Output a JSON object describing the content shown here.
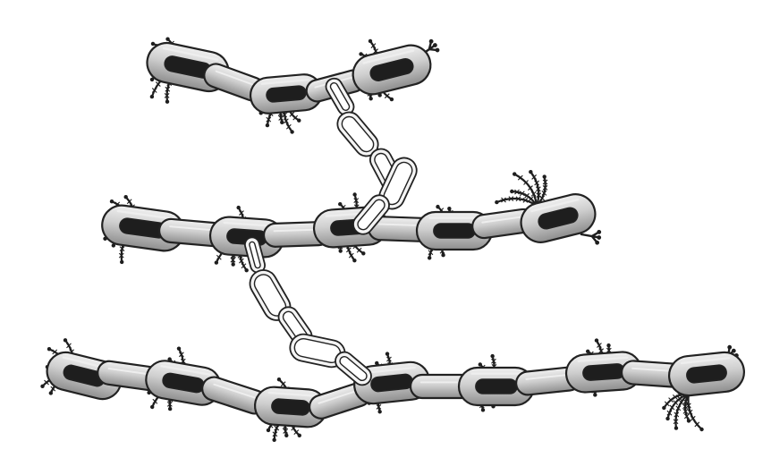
{
  "scene": {
    "subject": "chain-illustration",
    "colors": {
      "background": "#ffffff",
      "link_fill": "#c8c8c8",
      "link_highlight": "#eeeeee",
      "link_shadow": "#8c8c8c",
      "outline": "#222222",
      "thin_link_fill": "#f4f4f4",
      "tendril": "#1e1e1e"
    }
  }
}
